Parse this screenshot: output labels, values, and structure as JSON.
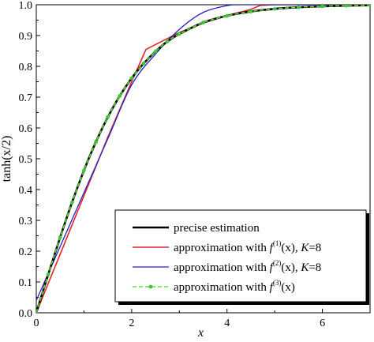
{
  "chart_data": {
    "type": "line",
    "xlabel": "x",
    "ylabel": "tanh(x/2)",
    "xlim": [
      0,
      7
    ],
    "ylim": [
      0.0,
      1.0
    ],
    "x_ticks": [
      "0",
      "2",
      "4",
      "6"
    ],
    "y_ticks": [
      "0.0",
      "0.1",
      "0.2",
      "0.3",
      "0.4",
      "0.5",
      "0.6",
      "0.7",
      "0.8",
      "0.9",
      "1.0"
    ],
    "grid": false,
    "legend_position": "bottom-right",
    "series": [
      {
        "name": "precise estimation",
        "color": "#000000",
        "x": [
          0,
          0.25,
          0.5,
          0.75,
          1.0,
          1.25,
          1.5,
          1.75,
          2.0,
          2.25,
          2.5,
          2.75,
          3.0,
          3.5,
          4.0,
          4.5,
          5.0,
          5.5,
          6.0,
          6.5,
          7.0
        ],
        "y": [
          0,
          0.1244,
          0.2449,
          0.3584,
          0.4621,
          0.5546,
          0.6351,
          0.7039,
          0.7616,
          0.8089,
          0.8483,
          0.881,
          0.9051,
          0.9422,
          0.964,
          0.978,
          0.9866,
          0.9918,
          0.9951,
          0.997,
          0.9982
        ]
      },
      {
        "name_parts": [
          "approximation with ",
          "f",
          "(1)",
          "(x), ",
          "K",
          "=8"
        ],
        "color": "#e8242a",
        "x": [
          0,
          0.5,
          1.0,
          1.5,
          2.0,
          2.3,
          3.0,
          3.5,
          4.0,
          4.5,
          4.7,
          5.0,
          6.0,
          7.0
        ],
        "y": [
          0,
          0.19,
          0.38,
          0.57,
          0.75,
          0.855,
          0.91,
          0.94,
          0.965,
          0.985,
          0.998,
          1.0,
          1.0,
          1.0
        ]
      },
      {
        "name_parts": [
          "approximation with ",
          "f",
          "(2)",
          "(x), ",
          "K",
          "=8"
        ],
        "color": "#2020c8",
        "x": [
          0,
          0.5,
          1.0,
          1.5,
          2.0,
          2.5,
          3.0,
          3.5,
          4.0,
          4.3,
          5.0,
          6.0,
          7.0
        ],
        "y": [
          0.04,
          0.215,
          0.39,
          0.565,
          0.74,
          0.84,
          0.92,
          0.975,
          0.997,
          1.0,
          1.0,
          1.0,
          1.0
        ]
      },
      {
        "name_parts": [
          "approximation with ",
          "f",
          "(3)",
          "(x)"
        ],
        "color": "#5fe032",
        "marker_color": "#3ac83a",
        "x": [
          0,
          0.25,
          0.5,
          0.75,
          1.0,
          1.25,
          1.5,
          1.75,
          2.0,
          2.25,
          2.5,
          2.75,
          3.0,
          3.5,
          4.0,
          4.5,
          5.0,
          5.5,
          6.0,
          6.5,
          7.0
        ],
        "y": [
          0,
          0.1244,
          0.2449,
          0.3584,
          0.4621,
          0.5546,
          0.6351,
          0.7039,
          0.7616,
          0.8089,
          0.8483,
          0.881,
          0.9051,
          0.9422,
          0.964,
          0.978,
          0.9866,
          0.9918,
          0.9951,
          0.997,
          0.9982
        ]
      }
    ]
  }
}
